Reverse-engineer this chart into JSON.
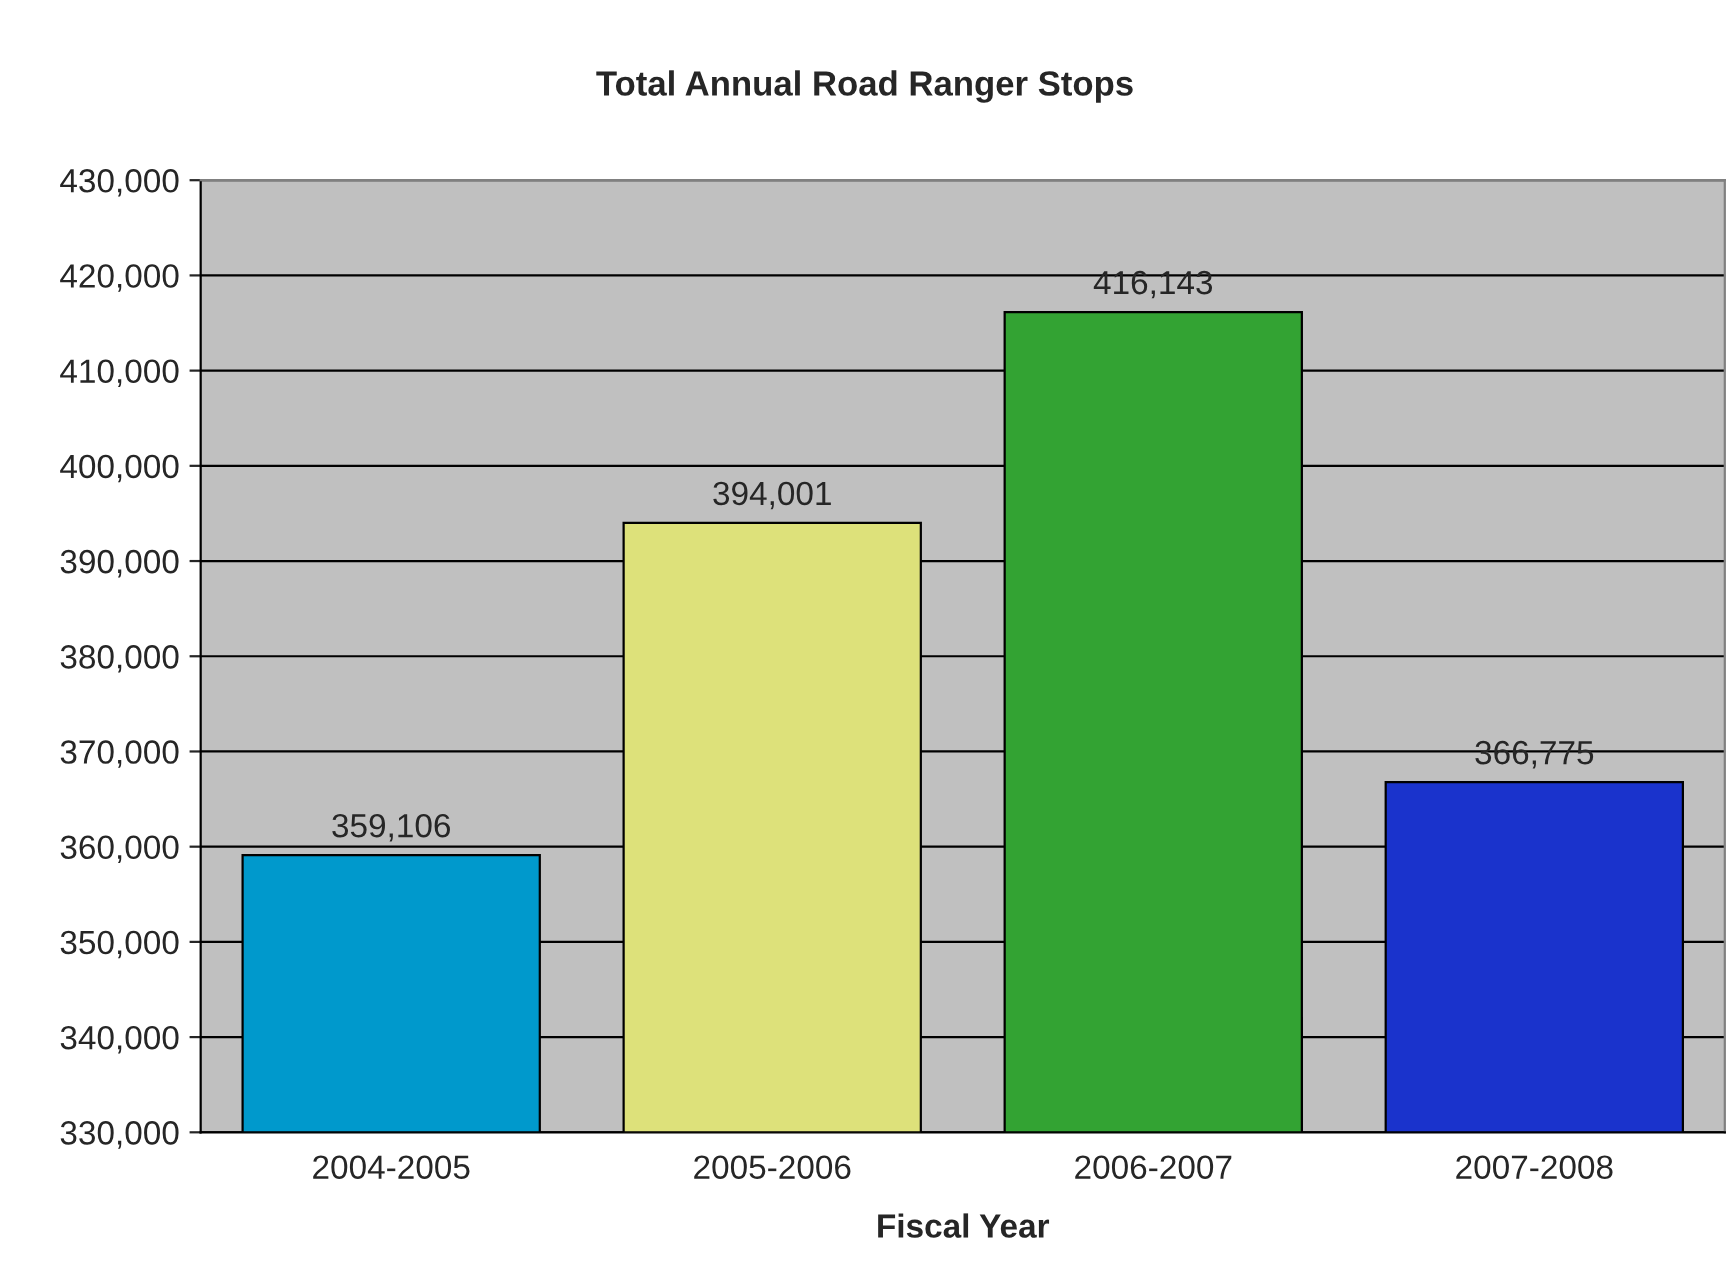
{
  "chart_data": {
    "type": "bar",
    "title": "Total Annual Road Ranger Stops",
    "xlabel": "Fiscal Year",
    "categories": [
      "2004-2005",
      "2005-2006",
      "2006-2007",
      "2007-2008"
    ],
    "values": [
      359106,
      394001,
      416143,
      366775
    ],
    "colors": [
      "#0099cc",
      "#dde17a",
      "#33a333",
      "#1a33cc"
    ],
    "value_labels": [
      "359,106",
      "394,001",
      "416,143",
      "366,775"
    ],
    "ylim": [
      330000,
      430000
    ],
    "yticks": [
      {
        "value": 330000,
        "label": "330,000"
      },
      {
        "value": 340000,
        "label": "340,000"
      },
      {
        "value": 350000,
        "label": "350,000"
      },
      {
        "value": 360000,
        "label": "360,000"
      },
      {
        "value": 370000,
        "label": "370,000"
      },
      {
        "value": 380000,
        "label": "380,000"
      },
      {
        "value": 390000,
        "label": "390,000"
      },
      {
        "value": 400000,
        "label": "400,000"
      },
      {
        "value": 410000,
        "label": "410,000"
      },
      {
        "value": 420000,
        "label": "420,000"
      },
      {
        "value": 430000,
        "label": "430,000"
      }
    ],
    "grid": "y"
  }
}
